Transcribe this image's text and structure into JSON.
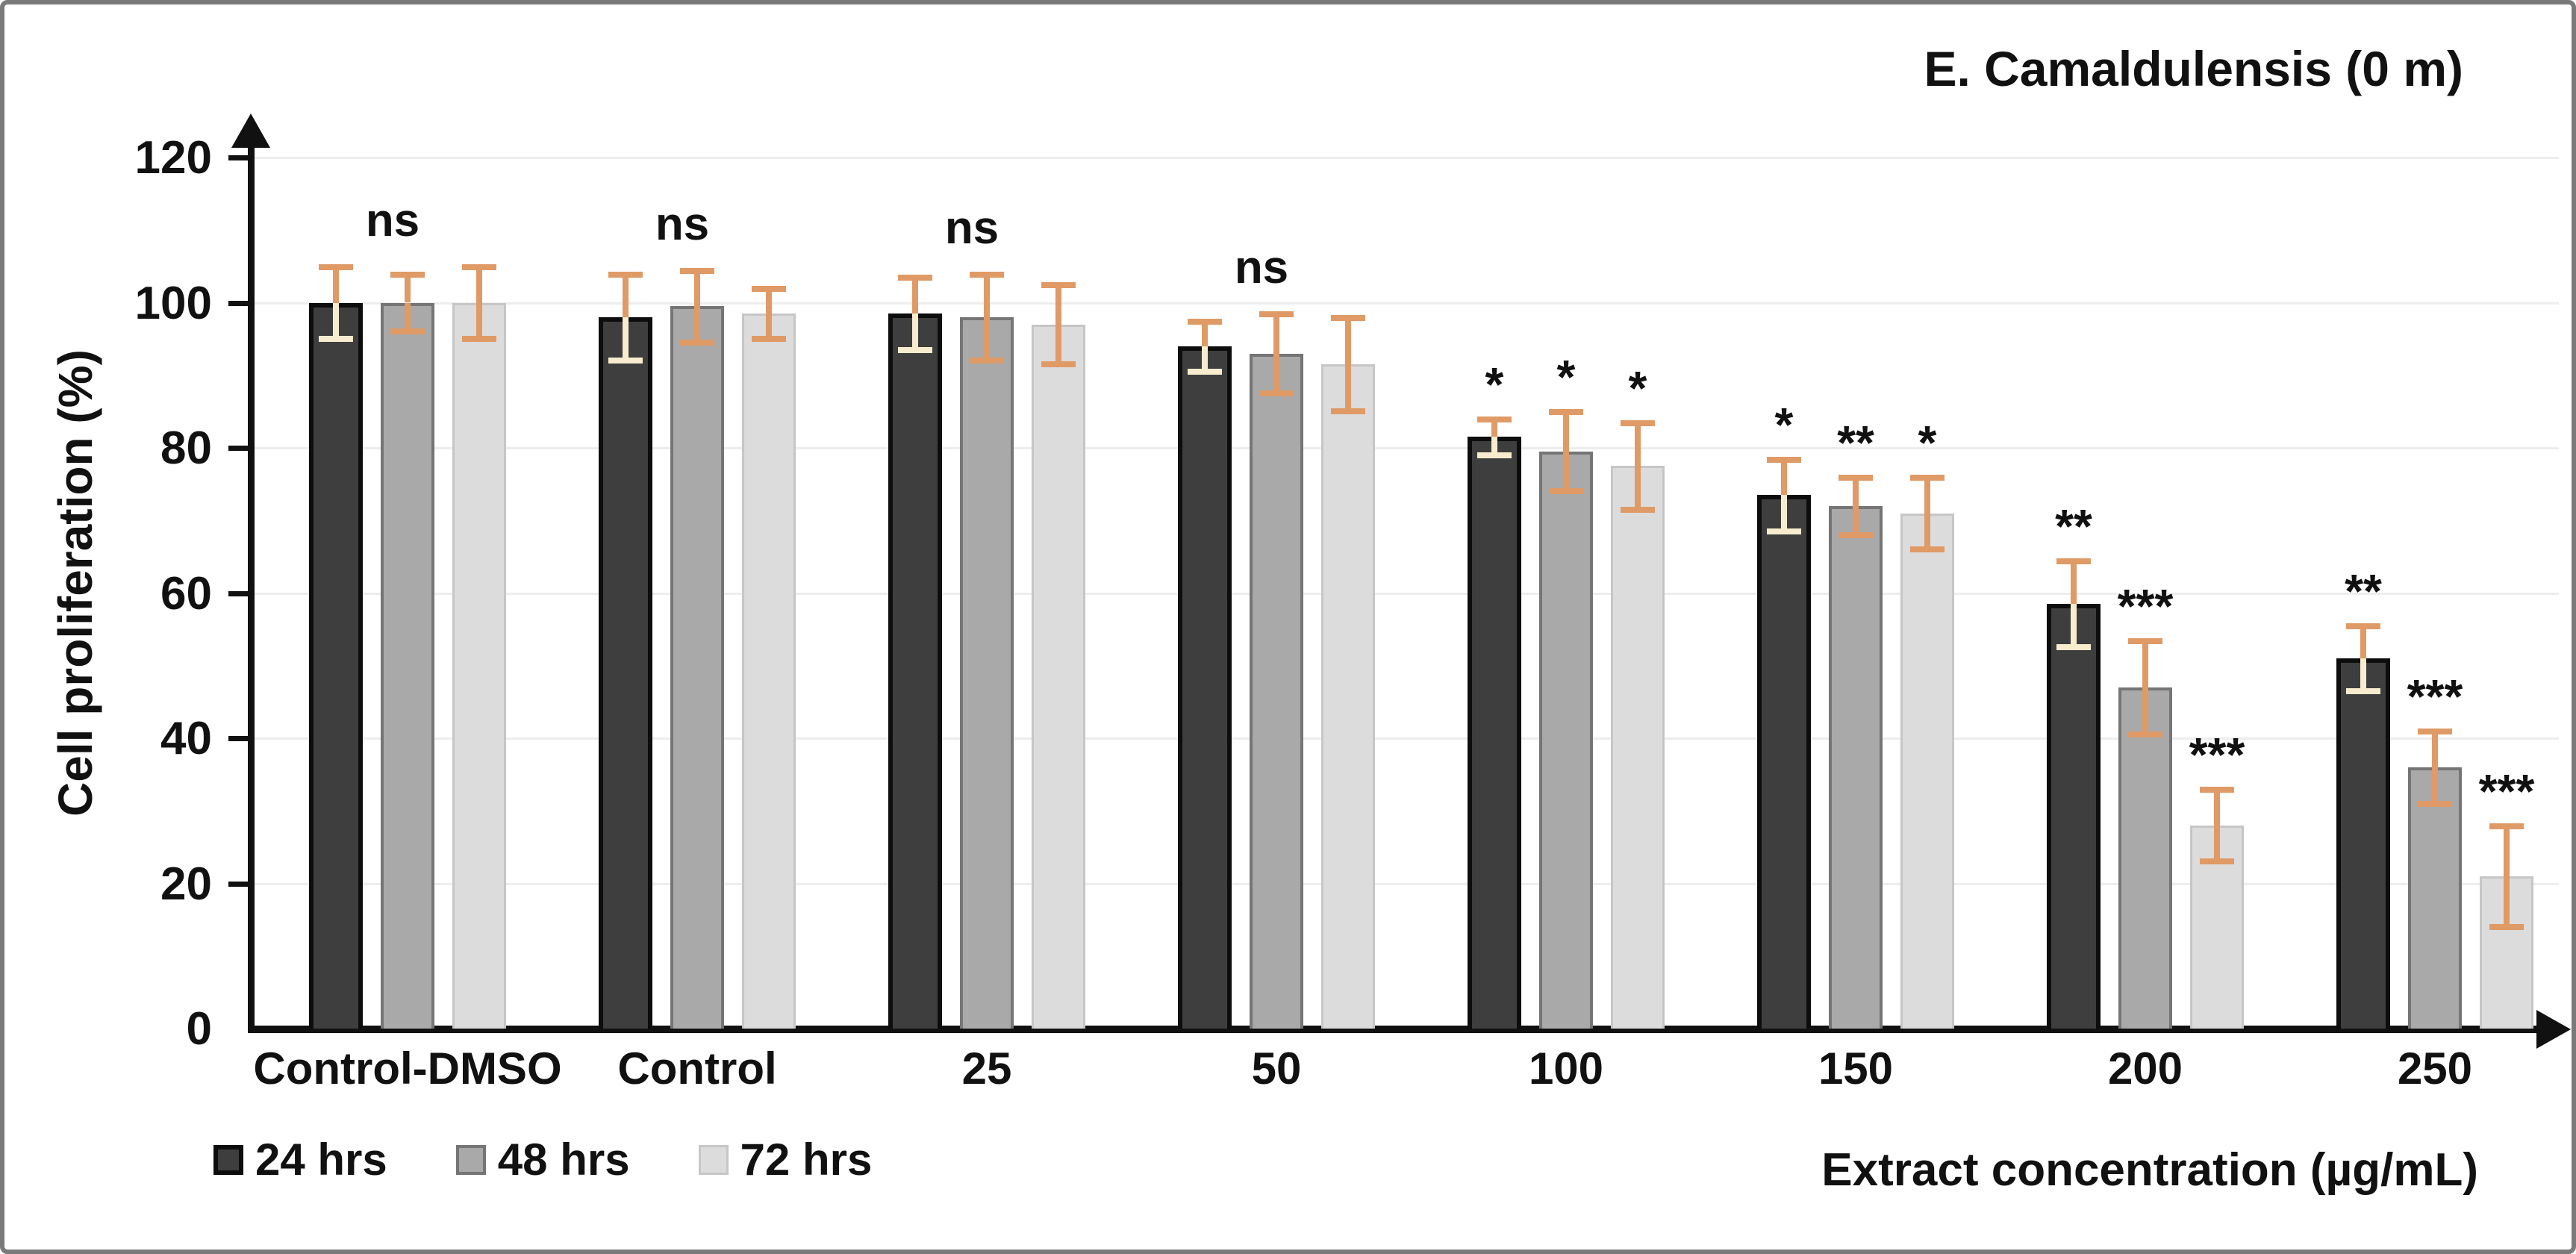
{
  "frame": {
    "background": "#ffffff",
    "border_color": "#7a7a7a"
  },
  "colors": {
    "axis": "#111111",
    "grid": "#ededed",
    "text": "#111111",
    "error_bar": "#df9a66",
    "error_bar_on_dark": "#f7ecce"
  },
  "chart_data": {
    "type": "bar",
    "title": "E. Camaldulensis (0 m)",
    "ylabel": "Cell proliferation (%)",
    "xlabel": "Extract concentration (µg/mL)",
    "ylim": [
      0,
      120
    ],
    "yticks": [
      0,
      20,
      40,
      60,
      80,
      100,
      120
    ],
    "grid": true,
    "legend_position": "bottom-left",
    "categories": [
      "Control-DMSO",
      "Control",
      "25",
      "50",
      "100",
      "150",
      "200",
      "250"
    ],
    "series": [
      {
        "name": "24 hrs",
        "fill": "#3e3e3e",
        "edge": "#0d0d0d",
        "values": [
          100,
          98,
          98.5,
          94,
          81.5,
          73.5,
          58.5,
          51
        ],
        "errors": [
          5,
          6,
          5,
          3.5,
          2.5,
          5,
          6,
          4.5
        ]
      },
      {
        "name": "48 hrs",
        "fill": "#a9a9a9",
        "edge": "#757575",
        "values": [
          100,
          99.5,
          98,
          93,
          79.5,
          72,
          47,
          36
        ],
        "errors": [
          4,
          5,
          6,
          5.5,
          5.5,
          4,
          6.5,
          5
        ]
      },
      {
        "name": "72 hrs",
        "fill": "#dcdcdc",
        "edge": "#c6c6c6",
        "values": [
          100,
          98.5,
          97,
          91.5,
          77.5,
          71,
          28,
          21
        ],
        "errors": [
          5,
          3.5,
          5.5,
          6.5,
          6,
          5,
          5,
          7
        ]
      }
    ],
    "annotations": {
      "group": [
        "ns",
        "ns",
        "ns",
        "ns",
        "",
        "",
        "",
        ""
      ],
      "bars": [
        [
          "",
          "",
          ""
        ],
        [
          "",
          "",
          ""
        ],
        [
          "",
          "",
          ""
        ],
        [
          "",
          "",
          ""
        ],
        [
          "*",
          "*",
          "*"
        ],
        [
          "*",
          "**",
          "*"
        ],
        [
          "**",
          "***",
          "***"
        ],
        [
          "**",
          "***",
          "***"
        ]
      ]
    }
  }
}
